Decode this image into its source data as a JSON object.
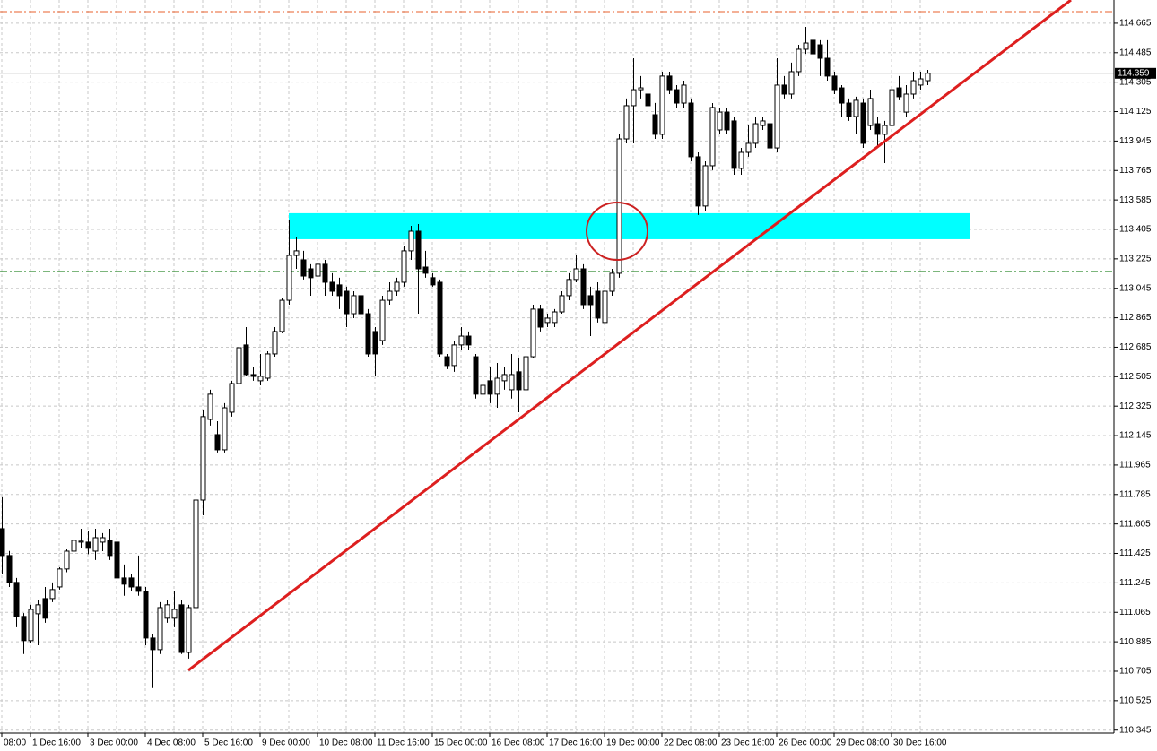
{
  "chart_data": {
    "type": "candlestick",
    "categories": [
      "08:00",
      null,
      null,
      null,
      "1 Dec 16:00",
      null,
      null,
      null,
      null,
      null,
      null,
      null,
      "3 Dec 00:00",
      null,
      null,
      null,
      null,
      null,
      null,
      null,
      "4 Dec 08:00",
      null,
      null,
      null,
      null,
      null,
      null,
      null,
      "5 Dec 16:00",
      null,
      null,
      null,
      null,
      null,
      null,
      null,
      "9 Dec 00:00",
      null,
      null,
      null,
      null,
      null,
      null,
      null,
      "10 Dec 08:00",
      null,
      null,
      null,
      null,
      null,
      null,
      null,
      "11 Dec 16:00",
      null,
      null,
      null,
      null,
      null,
      null,
      null,
      "15 Dec 00:00",
      null,
      null,
      null,
      null,
      null,
      null,
      null,
      "16 Dec 08:00",
      null,
      null,
      null,
      null,
      null,
      null,
      null,
      "17 Dec 16:00",
      null,
      null,
      null,
      null,
      null,
      null,
      null,
      "19 Dec 00:00",
      null,
      null,
      null,
      null,
      null,
      null,
      null,
      "22 Dec 08:00",
      null,
      null,
      null,
      null,
      null,
      null,
      null,
      "23 Dec 16:00",
      null,
      null,
      null,
      null,
      null,
      null,
      null,
      "26 Dec 00:00",
      null,
      null,
      null,
      null,
      null,
      null,
      null,
      "29 Dec 08:00",
      null,
      null,
      null,
      null,
      null,
      null,
      null,
      "30 Dec 16:00",
      null,
      null,
      null,
      null,
      null
    ],
    "open": [
      111.576,
      111.412,
      111.248,
      111.04,
      110.892,
      111.056,
      111.149,
      111.149,
      111.22,
      111.33,
      111.439,
      111.494,
      111.494,
      111.439,
      111.494,
      111.505,
      111.494,
      111.275,
      111.275,
      111.22,
      111.193,
      110.908,
      110.837,
      111.029,
      111.029,
      111.111,
      110.82,
      111.094,
      111.751,
      112.244,
      112.151,
      112.058,
      112.288,
      112.463,
      112.699,
      112.518,
      112.48,
      112.496,
      112.644,
      112.781,
      112.972,
      113.246,
      113.219,
      113.164,
      113.12,
      113.192,
      113.082,
      113.066,
      113.027,
      112.89,
      113.0,
      112.89,
      112.781,
      112.726,
      112.972,
      113.027,
      113.082,
      113.274,
      113.394,
      113.175,
      113.11,
      113.082,
      112.627,
      112.573,
      112.699,
      112.753,
      112.627,
      112.398,
      112.48,
      112.398,
      112.48,
      112.425,
      112.535,
      112.425,
      112.627,
      112.918,
      112.836,
      112.836,
      112.901,
      113.0,
      113.099,
      113.164,
      113.0,
      113.027,
      112.836,
      113.027,
      113.137,
      113.958,
      114.161,
      114.259,
      114.232,
      114.106,
      113.986,
      114.342,
      114.259,
      114.177,
      114.177,
      113.849,
      113.548,
      113.794,
      114.013,
      114.122,
      114.068,
      113.778,
      113.876,
      113.931,
      114.04,
      114.051,
      113.903,
      114.287,
      114.232,
      114.369,
      114.506,
      114.561,
      114.533,
      114.451,
      114.342,
      114.27,
      114.177,
      114.095,
      114.177,
      114.04,
      114.051,
      113.986,
      114.04,
      114.27,
      114.122,
      114.232,
      114.287,
      114.314
    ],
    "high": [
      111.768,
      111.44,
      111.275,
      111.06,
      111.111,
      111.138,
      111.22,
      111.248,
      111.34,
      111.45,
      111.713,
      111.576,
      111.56,
      111.576,
      111.549,
      111.576,
      111.521,
      111.357,
      111.302,
      111.412,
      111.22,
      110.93,
      111.127,
      111.138,
      111.193,
      111.138,
      111.111,
      111.784,
      112.299,
      112.425,
      112.233,
      112.343,
      112.48,
      112.808,
      112.808,
      112.562,
      112.644,
      112.66,
      112.808,
      112.983,
      113.465,
      113.356,
      113.274,
      113.192,
      113.219,
      113.219,
      113.137,
      113.11,
      113.055,
      113.027,
      113.027,
      112.918,
      112.808,
      113.0,
      113.082,
      113.11,
      113.301,
      113.427,
      113.438,
      113.274,
      113.137,
      113.099,
      112.644,
      112.726,
      112.808,
      112.781,
      112.644,
      112.507,
      112.562,
      112.589,
      112.562,
      112.644,
      112.617,
      112.671,
      112.945,
      112.945,
      112.89,
      112.918,
      113.027,
      113.137,
      113.246,
      113.192,
      113.055,
      113.082,
      113.055,
      113.164,
      113.986,
      114.205,
      114.451,
      114.342,
      114.342,
      114.178,
      114.369,
      114.369,
      114.287,
      114.314,
      114.205,
      113.876,
      113.821,
      114.177,
      114.15,
      114.15,
      114.095,
      113.903,
      114.04,
      114.095,
      114.095,
      114.068,
      114.451,
      114.342,
      114.424,
      114.533,
      114.643,
      114.588,
      114.561,
      114.561,
      114.369,
      114.287,
      114.205,
      114.216,
      114.205,
      114.259,
      114.095,
      114.068,
      114.342,
      114.342,
      114.287,
      114.369,
      114.369,
      114.38
    ],
    "low": [
      111.302,
      111.22,
      110.974,
      110.81,
      110.875,
      110.864,
      111.001,
      111.127,
      111.204,
      111.31,
      111.42,
      111.456,
      111.42,
      111.385,
      111.439,
      111.385,
      111.248,
      111.166,
      111.193,
      111.166,
      110.864,
      110.602,
      110.81,
      111.001,
      110.974,
      110.81,
      110.782,
      111.083,
      111.658,
      112.206,
      112.042,
      112.042,
      112.261,
      112.45,
      112.507,
      112.48,
      112.452,
      112.48,
      112.627,
      112.77,
      112.945,
      113.164,
      113.099,
      113.0,
      113.082,
      113.0,
      113.0,
      112.918,
      112.808,
      112.863,
      112.863,
      112.627,
      112.507,
      112.699,
      112.945,
      113.0,
      113.055,
      113.219,
      112.89,
      113.11,
      113.055,
      112.627,
      112.551,
      112.535,
      112.671,
      112.671,
      112.371,
      112.371,
      112.343,
      112.315,
      112.425,
      112.371,
      112.288,
      112.398,
      112.617,
      112.781,
      112.808,
      112.808,
      112.89,
      112.972,
      113.082,
      112.918,
      112.753,
      112.836,
      112.808,
      113.0,
      113.11,
      113.931,
      113.931,
      114.205,
      113.986,
      113.958,
      113.958,
      114.232,
      114.15,
      114.15,
      113.821,
      113.493,
      113.52,
      113.767,
      113.986,
      113.986,
      113.739,
      113.739,
      113.849,
      113.903,
      114.013,
      113.876,
      113.876,
      114.205,
      114.205,
      114.342,
      114.478,
      114.451,
      114.342,
      114.314,
      114.232,
      114.095,
      114.068,
      113.986,
      113.903,
      114.013,
      113.903,
      113.81,
      114.013,
      114.194,
      114.095,
      114.205,
      114.259,
      114.287
    ],
    "close": [
      111.412,
      111.248,
      111.04,
      110.892,
      111.083,
      111.111,
      111.029,
      111.204,
      111.33,
      111.439,
      111.505,
      111.5,
      111.456,
      111.521,
      111.521,
      111.412,
      111.275,
      111.237,
      111.22,
      111.193,
      110.908,
      110.837,
      111.094,
      111.111,
      111.083,
      110.82,
      111.094,
      111.751,
      112.261,
      112.398,
      112.058,
      112.315,
      112.463,
      112.682,
      112.518,
      112.507,
      112.507,
      112.644,
      112.781,
      112.972,
      113.246,
      113.274,
      113.12,
      113.11,
      113.192,
      113.082,
      113.027,
      113.0,
      112.89,
      113.0,
      112.89,
      112.644,
      112.644,
      112.972,
      113.027,
      113.082,
      113.274,
      113.394,
      113.164,
      113.137,
      113.066,
      112.644,
      112.573,
      112.699,
      112.753,
      112.699,
      112.398,
      112.452,
      112.398,
      112.496,
      112.518,
      112.518,
      112.425,
      112.627,
      112.918,
      112.808,
      112.863,
      112.901,
      113.0,
      113.099,
      113.164,
      112.945,
      112.945,
      112.863,
      113.027,
      113.137,
      113.958,
      114.161,
      114.259,
      114.27,
      114.161,
      113.986,
      114.342,
      114.259,
      114.177,
      114.287,
      113.849,
      113.548,
      113.794,
      114.15,
      114.122,
      114.013,
      113.778,
      113.876,
      113.931,
      114.051,
      114.068,
      113.903,
      114.287,
      114.232,
      114.369,
      114.506,
      114.544,
      114.478,
      114.451,
      114.342,
      114.259,
      114.177,
      114.095,
      114.194,
      113.931,
      114.205,
      113.986,
      114.04,
      114.259,
      114.216,
      114.232,
      114.314,
      114.325,
      114.359
    ],
    "ylim": [
      110.327,
      114.807
    ],
    "yticks": [
      114.665,
      114.485,
      114.305,
      114.125,
      113.945,
      113.765,
      113.585,
      113.405,
      113.225,
      113.045,
      112.865,
      112.685,
      112.505,
      112.325,
      112.145,
      111.965,
      111.785,
      111.605,
      111.425,
      111.245,
      111.065,
      110.885,
      110.705,
      110.525,
      110.345
    ],
    "grid": true,
    "last_price": 114.359,
    "levels": [
      {
        "value": 114.736,
        "color": "#e8612c"
      },
      {
        "value": 113.148,
        "color": "#2e8b2e"
      }
    ],
    "zone": {
      "low": 113.345,
      "high": 113.504,
      "start": 40,
      "end": 135,
      "color": "#00ffff"
    },
    "trendline": {
      "from": {
        "index": 26,
        "price": 110.711
      },
      "to": {
        "index": 149,
        "price": 114.807
      },
      "color": "#dd1f1f"
    }
  }
}
